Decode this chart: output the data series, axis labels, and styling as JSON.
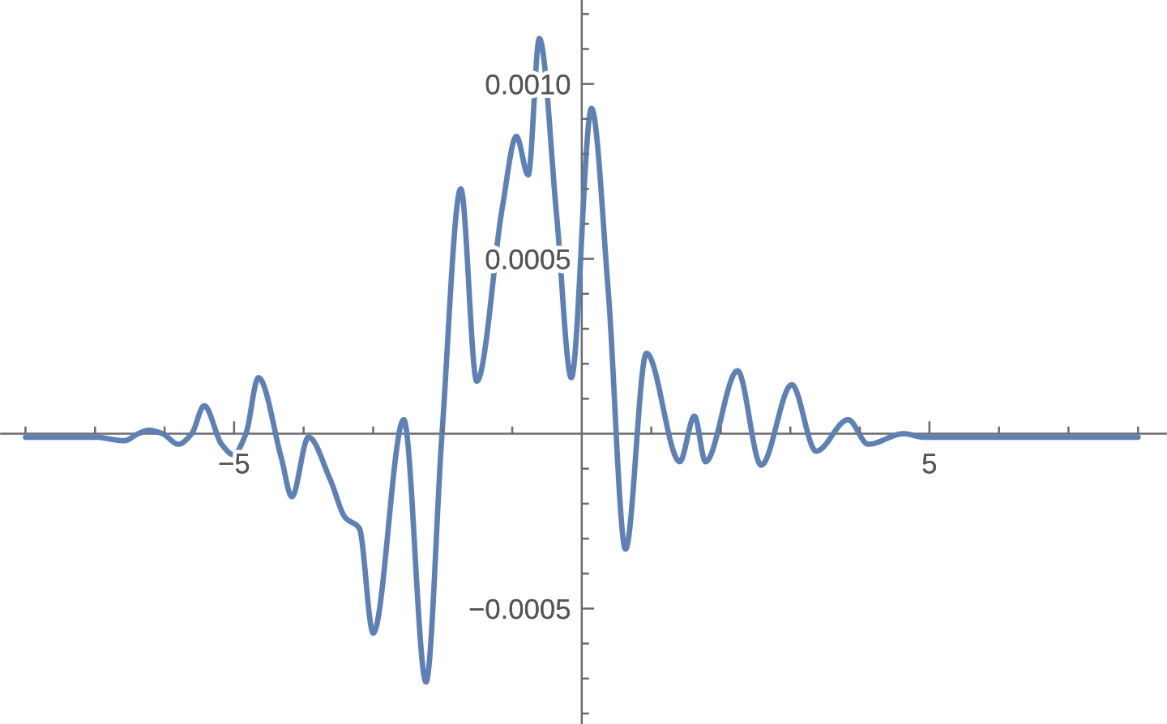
{
  "chart_data": {
    "type": "line",
    "x": [
      -8,
      -7.43,
      -7.0,
      -6.58,
      -6.38,
      -6.23,
      -6.03,
      -5.8,
      -5.61,
      -5.43,
      -5.18,
      -5.01,
      -4.83,
      -4.65,
      -4.32,
      -4.17,
      -3.93,
      -3.62,
      -3.4,
      -3.2,
      -3.0,
      -2.56,
      -2.24,
      -2.01,
      -1.74,
      -1.51,
      -1.14,
      -0.94,
      -0.77,
      -0.61,
      -0.36,
      -0.15,
      0.14,
      0.38,
      0.63,
      0.93,
      1.41,
      1.62,
      1.78,
      2.24,
      2.58,
      3.02,
      3.37,
      3.83,
      4.12,
      4.63,
      4.92,
      5.62,
      6.79,
      8
    ],
    "series": [
      {
        "color": "#5e81b5",
        "values": [
          -1e-05,
          -1e-05,
          -1e-05,
          -2e-05,
          0.0,
          1e-05,
          0.0,
          -3e-05,
          0.0,
          8e-05,
          -3e-05,
          -6e-05,
          0.0,
          0.00016,
          -7e-05,
          -0.00018,
          -1e-05,
          -0.00013,
          -0.00024,
          -0.00027,
          -0.00057,
          4e-05,
          -0.00071,
          0.0,
          0.0007,
          0.00015,
          0.00065,
          0.00085,
          0.00074,
          0.00113,
          0.00062,
          0.00016,
          0.00093,
          0.00041,
          -0.00033,
          0.00023,
          -8e-05,
          5e-05,
          -8e-05,
          0.00018,
          -9e-05,
          0.00014,
          -5e-05,
          4e-05,
          -3e-05,
          0.0,
          -1e-05,
          -1e-05,
          -1e-05,
          -1e-05
        ]
      }
    ],
    "xlim": [
      -8.35,
      8.4
    ],
    "ylim": [
      -0.00083,
      0.00124
    ],
    "xticks": [
      {
        "value": -8,
        "label": null
      },
      {
        "value": -7,
        "label": null
      },
      {
        "value": -6,
        "label": null
      },
      {
        "value": -5,
        "label": "−5"
      },
      {
        "value": -4,
        "label": null
      },
      {
        "value": -3,
        "label": null
      },
      {
        "value": -2,
        "label": null
      },
      {
        "value": -1,
        "label": null
      },
      {
        "value": 1,
        "label": null
      },
      {
        "value": 2,
        "label": null
      },
      {
        "value": 3,
        "label": null
      },
      {
        "value": 4,
        "label": null
      },
      5,
      {
        "value": 6,
        "label": null
      },
      {
        "value": 7,
        "label": null
      },
      {
        "value": 8,
        "label": null
      }
    ],
    "yticks": [
      {
        "value": -0.0008,
        "label": null
      },
      {
        "value": -0.0007,
        "label": null
      },
      {
        "value": -0.0006,
        "label": null
      },
      {
        "value": -0.0005,
        "label": "−0.0005"
      },
      {
        "value": -0.0004,
        "label": null
      },
      {
        "value": -0.0003,
        "label": null
      },
      {
        "value": -0.0002,
        "label": null
      },
      {
        "value": -0.0001,
        "label": null
      },
      {
        "value": 0.0001,
        "label": null
      },
      {
        "value": 0.0002,
        "label": null
      },
      {
        "value": 0.0003,
        "label": null
      },
      {
        "value": 0.0004,
        "label": null
      },
      0.0005,
      {
        "value": 0.0006,
        "label": null
      },
      {
        "value": 0.0007,
        "label": null
      },
      {
        "value": 0.0008,
        "label": null
      },
      {
        "value": 0.0009,
        "label": null
      },
      {
        "value": 0.001,
        "label": "0.0010"
      },
      {
        "value": 0.0011,
        "label": null
      },
      {
        "value": 0.0012,
        "label": null
      }
    ]
  }
}
